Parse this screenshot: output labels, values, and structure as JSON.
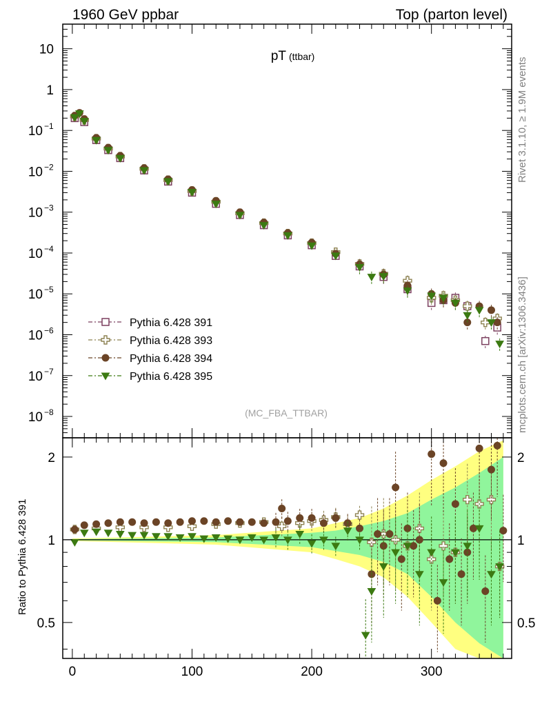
{
  "header": {
    "left": "1960 GeV ppbar",
    "right": "Top (parton level)"
  },
  "side_labels": {
    "rivet": "Rivet 3.1.10, ≥ 1.9M events",
    "mcplots": "mcplots.cern.ch [arXiv:1306.3436]"
  },
  "chart_data": [
    {
      "type": "scatter",
      "title": "pT",
      "title_suffix": "(ttbar)",
      "watermark": "(MC_FBA_TTBAR)",
      "yscale": "log",
      "xlim": [
        -8,
        367
      ],
      "ylim": [
        3e-09,
        40
      ],
      "yticks": [
        {
          "value": 10,
          "label": "10"
        },
        {
          "value": 1,
          "label": "1"
        },
        {
          "value": 0.1,
          "label": "10",
          "exp": "−1"
        },
        {
          "value": 0.01,
          "label": "10",
          "exp": "−2"
        },
        {
          "value": 0.001,
          "label": "10",
          "exp": "−3"
        },
        {
          "value": 0.0001,
          "label": "10",
          "exp": "−4"
        },
        {
          "value": 1e-05,
          "label": "10",
          "exp": "−5"
        },
        {
          "value": 1e-06,
          "label": "10",
          "exp": "−6"
        },
        {
          "value": 1e-07,
          "label": "10",
          "exp": "−7"
        },
        {
          "value": 1e-08,
          "label": "10",
          "exp": "−8"
        }
      ],
      "legend": {
        "placement": "bottom-left",
        "entries": [
          {
            "name": "Pythia 6.428 391",
            "color": "#7b3f5e",
            "marker": "open-square"
          },
          {
            "name": "Pythia 6.428 393",
            "color": "#8c8150",
            "marker": "open-cross"
          },
          {
            "name": "Pythia 6.428 394",
            "color": "#6b4426",
            "marker": "filled-circle"
          },
          {
            "name": "Pythia 6.428 395",
            "color": "#3c7a12",
            "marker": "filled-triangle-down"
          }
        ]
      },
      "series": [
        {
          "name": "Pythia 6.428 391",
          "x": [
            2,
            10,
            20,
            30,
            40,
            60,
            80,
            100,
            120,
            140,
            160,
            180,
            200,
            220,
            240,
            260,
            280,
            300,
            310,
            320,
            330,
            345,
            355
          ],
          "y": [
            0.2,
            0.16,
            0.058,
            0.033,
            0.021,
            0.0105,
            0.0056,
            0.003,
            0.0016,
            0.00085,
            0.00048,
            0.00027,
            0.000155,
            8.5e-05,
            4.7e-05,
            2.6e-05,
            1.3e-05,
            6e-06,
            7e-06,
            8e-06,
            5e-06,
            7e-07,
            1.5e-06
          ]
        },
        {
          "name": "Pythia 6.428 393",
          "x": [
            2,
            10,
            20,
            30,
            40,
            60,
            80,
            100,
            120,
            140,
            160,
            180,
            200,
            220,
            240,
            260,
            280,
            300,
            310,
            320,
            330,
            345,
            355
          ],
          "y": [
            0.22,
            0.18,
            0.063,
            0.036,
            0.023,
            0.0115,
            0.0061,
            0.0033,
            0.0018,
            0.00094,
            0.00054,
            0.0003,
            0.000175,
            0.000105,
            5.4e-05,
            3.1e-05,
            2.1e-05,
            8e-06,
            9e-06,
            7e-06,
            5e-06,
            2e-06,
            2.5e-06
          ]
        },
        {
          "name": "Pythia 6.428 394",
          "x": [
            2,
            6,
            10,
            20,
            30,
            40,
            60,
            80,
            100,
            120,
            140,
            160,
            180,
            200,
            220,
            240,
            260,
            280,
            300,
            310,
            320,
            330,
            340,
            350,
            355
          ],
          "y": [
            0.23,
            0.27,
            0.19,
            0.066,
            0.038,
            0.024,
            0.012,
            0.0064,
            0.0035,
            0.0019,
            0.001,
            0.00056,
            0.00031,
            0.00018,
            9.6e-05,
            5.3e-05,
            3e-05,
            1.6e-05,
            1e-05,
            7e-06,
            6e-06,
            2e-06,
            5e-06,
            4e-06,
            2e-06
          ]
        },
        {
          "name": "Pythia 6.428 395",
          "x": [
            2,
            6,
            10,
            20,
            30,
            40,
            60,
            80,
            100,
            120,
            140,
            160,
            180,
            200,
            220,
            240,
            250,
            260,
            280,
            300,
            310,
            320,
            330,
            340,
            350,
            357
          ],
          "y": [
            0.21,
            0.26,
            0.17,
            0.058,
            0.033,
            0.021,
            0.0106,
            0.0057,
            0.0031,
            0.0016,
            0.00085,
            0.00048,
            0.00027,
            0.000152,
            8.6e-05,
            4.5e-05,
            2.6e-05,
            2.7e-05,
            1.2e-05,
            9e-06,
            8e-06,
            6e-06,
            3e-06,
            4e-06,
            2e-06,
            6e-07
          ]
        }
      ]
    },
    {
      "type": "scatter",
      "ylabel": "Ratio to Pythia 6.428 391",
      "yscale": "log",
      "xlim": [
        -8,
        367
      ],
      "ylim": [
        0.37,
        2.35
      ],
      "yticks": [
        {
          "value": 0.5,
          "label": "0.5"
        },
        {
          "value": 1,
          "label": "1"
        },
        {
          "value": 2,
          "label": "2"
        }
      ],
      "xticks": [
        0,
        100,
        200,
        300
      ],
      "band_colors": {
        "outer": "#ffff80",
        "inner": "#90f59c"
      },
      "band": {
        "x": [
          0,
          40,
          80,
          120,
          160,
          200,
          220,
          240,
          260,
          280,
          300,
          320,
          340,
          360
        ],
        "outer_low": [
          0.99,
          0.98,
          0.97,
          0.96,
          0.93,
          0.9,
          0.85,
          0.8,
          0.73,
          0.62,
          0.5,
          0.4,
          0.37,
          0.37
        ],
        "outer_high": [
          1.01,
          1.02,
          1.03,
          1.04,
          1.07,
          1.1,
          1.15,
          1.2,
          1.3,
          1.45,
          1.65,
          1.85,
          2.1,
          2.3
        ],
        "inner_low": [
          0.995,
          0.99,
          0.985,
          0.98,
          0.96,
          0.94,
          0.91,
          0.88,
          0.83,
          0.75,
          0.62,
          0.5,
          0.42,
          0.37
        ],
        "inner_high": [
          1.005,
          1.01,
          1.015,
          1.02,
          1.04,
          1.06,
          1.08,
          1.12,
          1.17,
          1.25,
          1.4,
          1.55,
          1.75,
          2.0
        ]
      },
      "series": [
        {
          "name": "Pythia 6.428 393",
          "x": [
            2,
            20,
            40,
            60,
            80,
            100,
            120,
            140,
            160,
            175,
            190,
            200,
            210,
            220,
            230,
            240,
            250,
            260,
            270,
            280,
            290,
            300,
            310,
            320,
            330,
            340,
            350,
            357
          ],
          "y": [
            1.09,
            1.1,
            1.11,
            1.11,
            1.11,
            1.12,
            1.14,
            1.15,
            1.16,
            1.12,
            1.15,
            1.17,
            1.18,
            1.21,
            1.14,
            1.23,
            0.98,
            1.05,
            1.0,
            0.95,
            1.1,
            0.85,
            0.95,
            0.9,
            1.4,
            1.35,
            1.4,
            0.8
          ]
        },
        {
          "name": "Pythia 6.428 394",
          "x": [
            2,
            10,
            20,
            30,
            40,
            50,
            60,
            70,
            80,
            90,
            100,
            110,
            120,
            130,
            140,
            150,
            160,
            170,
            175,
            180,
            190,
            200,
            210,
            220,
            230,
            240,
            250,
            255,
            260,
            265,
            270,
            275,
            280,
            285,
            290,
            300,
            305,
            310,
            315,
            320,
            325,
            330,
            335,
            340,
            345,
            350,
            355,
            360
          ],
          "y": [
            1.09,
            1.13,
            1.14,
            1.15,
            1.16,
            1.16,
            1.15,
            1.16,
            1.15,
            1.16,
            1.17,
            1.17,
            1.16,
            1.17,
            1.16,
            1.16,
            1.15,
            1.16,
            1.3,
            1.17,
            1.2,
            1.2,
            1.15,
            1.2,
            1.15,
            1.1,
            0.75,
            1.05,
            0.95,
            1.05,
            1.55,
            0.85,
            1.1,
            0.95,
            1.0,
            2.05,
            0.6,
            1.9,
            0.85,
            1.35,
            0.75,
            0.9,
            1.1,
            2.15,
            0.65,
            1.8,
            2.2,
            1.08
          ]
        },
        {
          "name": "Pythia 6.428 395",
          "x": [
            2,
            10,
            20,
            30,
            40,
            50,
            60,
            70,
            80,
            90,
            100,
            110,
            120,
            130,
            140,
            150,
            160,
            170,
            180,
            190,
            200,
            210,
            220,
            230,
            240,
            245,
            250,
            260,
            270,
            280,
            290,
            300,
            310,
            320,
            330,
            340,
            350,
            357
          ],
          "y": [
            0.98,
            1.06,
            1.07,
            1.06,
            1.05,
            1.04,
            1.04,
            1.03,
            1.03,
            1.02,
            1.03,
            1.01,
            1.02,
            1.01,
            1.0,
            1.02,
            1.0,
            1.02,
            1.0,
            1.05,
            0.97,
            1.0,
            0.95,
            1.08,
            1.0,
            0.45,
            0.65,
            0.8,
            0.9,
            0.95,
            0.75,
            0.9,
            0.7,
            0.9,
            0.95,
            1.1,
            0.75,
            0.8
          ]
        }
      ]
    }
  ]
}
